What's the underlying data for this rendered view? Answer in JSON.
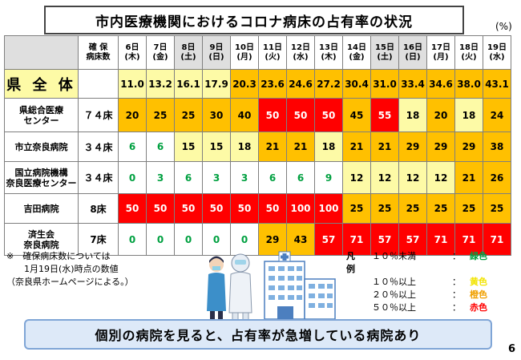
{
  "title": "市内医療機関におけるコロナ病床の占有率の状況",
  "unit": "(%)",
  "table": {
    "beds_header": "確 保\n病床数",
    "dates": [
      {
        "day": "6日",
        "dow": "(木)"
      },
      {
        "day": "7日",
        "dow": "(金)"
      },
      {
        "day": "8日",
        "dow": "(土)"
      },
      {
        "day": "9日",
        "dow": "(日)"
      },
      {
        "day": "10日",
        "dow": "(月)"
      },
      {
        "day": "11日",
        "dow": "(火)"
      },
      {
        "day": "12日",
        "dow": "(水)"
      },
      {
        "day": "13日",
        "dow": "(木)"
      },
      {
        "day": "14日",
        "dow": "(金)"
      },
      {
        "day": "15日",
        "dow": "(土)"
      },
      {
        "day": "16日",
        "dow": "(日)"
      },
      {
        "day": "17日",
        "dow": "(月)"
      },
      {
        "day": "18日",
        "dow": "(火)"
      },
      {
        "day": "19日",
        "dow": "(水)"
      }
    ],
    "prefecture": {
      "label": "県 全 体",
      "beds": "",
      "values": [
        "11.0",
        "13.2",
        "16.1",
        "17.9",
        "20.3",
        "23.6",
        "24.6",
        "27.2",
        "30.4",
        "31.0",
        "33.4",
        "34.6",
        "38.0",
        "43.1"
      ],
      "levels": [
        "yellow",
        "yellow",
        "yellow",
        "yellow",
        "orange",
        "orange",
        "orange",
        "orange",
        "orange",
        "orange",
        "orange",
        "orange",
        "orange",
        "orange"
      ]
    },
    "hospitals": [
      {
        "name": "県総合医療\nセンター",
        "beds": "７４床",
        "values": [
          "20",
          "25",
          "25",
          "30",
          "40",
          "50",
          "50",
          "50",
          "45",
          "55",
          "18",
          "20",
          "18",
          "24"
        ],
        "levels": [
          "orange",
          "orange",
          "orange",
          "orange",
          "orange",
          "red",
          "red",
          "red",
          "orange",
          "red",
          "yellow",
          "orange",
          "yellow",
          "orange"
        ]
      },
      {
        "name": "市立奈良病院",
        "beds": "３４床",
        "values": [
          "6",
          "6",
          "15",
          "15",
          "18",
          "21",
          "21",
          "18",
          "21",
          "21",
          "29",
          "29",
          "29",
          "38"
        ],
        "levels": [
          "green",
          "green",
          "yellow",
          "yellow",
          "yellow",
          "orange",
          "orange",
          "yellow",
          "orange",
          "orange",
          "orange",
          "orange",
          "orange",
          "orange"
        ]
      },
      {
        "name": "国立病院機構\n奈良医療センター",
        "beds": "３４床",
        "values": [
          "0",
          "3",
          "6",
          "3",
          "3",
          "6",
          "6",
          "9",
          "12",
          "12",
          "12",
          "12",
          "21",
          "26"
        ],
        "levels": [
          "green",
          "green",
          "green",
          "green",
          "green",
          "green",
          "green",
          "green",
          "yellow",
          "yellow",
          "yellow",
          "yellow",
          "orange",
          "orange"
        ]
      },
      {
        "name": "吉田病院",
        "beds": "8床",
        "values": [
          "50",
          "50",
          "50",
          "50",
          "50",
          "50",
          "100",
          "100",
          "25",
          "25",
          "25",
          "25",
          "25",
          "25"
        ],
        "levels": [
          "red",
          "red",
          "red",
          "red",
          "red",
          "red",
          "red",
          "red",
          "orange",
          "orange",
          "orange",
          "orange",
          "orange",
          "orange"
        ]
      },
      {
        "name": "済生会\n奈良病院",
        "beds": "7床",
        "values": [
          "0",
          "0",
          "0",
          "0",
          "0",
          "29",
          "43",
          "57",
          "71",
          "57",
          "57",
          "71",
          "71",
          "71"
        ],
        "levels": [
          "green",
          "green",
          "green",
          "green",
          "green",
          "orange",
          "orange",
          "red",
          "red",
          "red",
          "red",
          "red",
          "red",
          "red"
        ]
      }
    ]
  },
  "footnote": {
    "line1": "※　確保病床数については",
    "line2": "　　1月19日(水)時点の数値",
    "line3": "（奈良県ホームページによる。）"
  },
  "legend": {
    "title": "凡　例",
    "items": [
      {
        "range": "１０％未満",
        "sep": "：",
        "color_name": "緑色",
        "color": "#00a040"
      },
      {
        "range": "１０％以上",
        "sep": "：",
        "color_name": "黄色",
        "color": "#f2e400"
      },
      {
        "range": "２０％以上",
        "sep": "：",
        "color_name": "橙色",
        "color": "#f0a000"
      },
      {
        "range": "５０％以上",
        "sep": "：",
        "color_name": "赤色",
        "color": "#ff0000"
      }
    ]
  },
  "message": "個別の病院を見ると、占有率が急増している病院あり",
  "page_number": "6",
  "colors": {
    "green": "#00a040",
    "yellow": "#fdfaa6",
    "orange": "#ffc000",
    "red": "#ff0000",
    "message_bg": "#dde9f8"
  }
}
